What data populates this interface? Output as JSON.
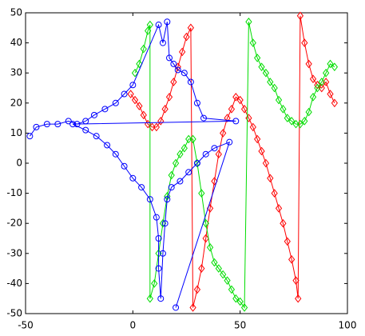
{
  "chart_data": {
    "type": "line",
    "xlim": [
      -50,
      100
    ],
    "ylim": [
      -50,
      50
    ],
    "xticks": [
      -50,
      0,
      50,
      100
    ],
    "yticks": [
      -50,
      -40,
      -30,
      -20,
      -10,
      0,
      10,
      20,
      30,
      40,
      50
    ],
    "series": [
      {
        "color": "#ff0000",
        "marker": "diamond",
        "x": [
          -1,
          1,
          3,
          5,
          7,
          9,
          11,
          13,
          15,
          17,
          19,
          21,
          23,
          25,
          27,
          28,
          30,
          32,
          34,
          36,
          38,
          40,
          42,
          44,
          46,
          48,
          50,
          52,
          54,
          56,
          58,
          60,
          62,
          64,
          66,
          68,
          70,
          72,
          74,
          76,
          77,
          78,
          80,
          82,
          84,
          86,
          88,
          90,
          92,
          94
        ],
        "values": [
          23,
          21,
          19,
          16,
          13,
          12,
          12,
          14,
          18,
          22,
          27,
          32,
          37,
          42,
          45,
          -48,
          -42,
          -35,
          -25,
          -15,
          -6,
          3,
          10,
          15,
          18,
          22,
          21,
          18,
          15,
          12,
          8,
          4,
          0,
          -5,
          -10,
          -15,
          -20,
          -26,
          -32,
          -39,
          -45,
          49,
          40,
          33,
          28,
          26,
          25,
          27,
          23,
          20
        ]
      },
      {
        "color": "#00dd00",
        "marker": "diamond",
        "x": [
          1,
          3,
          5,
          7,
          8,
          8,
          10,
          12,
          14,
          16,
          18,
          20,
          22,
          24,
          26,
          28,
          30,
          32,
          34,
          36,
          38,
          40,
          42,
          44,
          46,
          48,
          50,
          52,
          54,
          56,
          58,
          60,
          62,
          64,
          66,
          68,
          70,
          72,
          74,
          76,
          78,
          80,
          82,
          84,
          86,
          88,
          90,
          92,
          94
        ],
        "values": [
          30,
          33,
          38,
          44,
          46,
          -45,
          -40,
          -30,
          -20,
          -11,
          -4,
          0,
          3,
          5,
          8,
          8,
          0,
          -10,
          -20,
          -28,
          -33,
          -35,
          -37,
          -39,
          -42,
          -45,
          -46,
          -48,
          47,
          40,
          35,
          32,
          30,
          27,
          25,
          21,
          18,
          15,
          14,
          13,
          13,
          14,
          17,
          22,
          25,
          27,
          30,
          33,
          32
        ]
      },
      {
        "color": "#0000ff",
        "marker": "circle",
        "x": [
          -48,
          -45,
          -40,
          -35,
          -30,
          -26,
          -22,
          -18,
          -13,
          -8,
          -4,
          0,
          12,
          14,
          16,
          17,
          19,
          21,
          24,
          27,
          30,
          33,
          48,
          -28,
          -22,
          -17,
          -12,
          -8,
          -4,
          0,
          4,
          8,
          11,
          12,
          12,
          13,
          14,
          15,
          16,
          18,
          22,
          26,
          30,
          34,
          38,
          45,
          20
        ],
        "values": [
          9,
          12,
          13,
          13,
          14,
          13,
          14,
          16,
          18,
          20,
          23,
          26,
          46,
          40,
          47,
          35,
          33,
          31,
          30,
          27,
          20,
          15,
          14,
          13,
          11,
          9,
          6,
          3,
          -1,
          -5,
          -8,
          -12,
          -18,
          -25,
          -35,
          -45,
          -30,
          -20,
          -12,
          -8,
          -6,
          -3,
          0,
          3,
          5,
          7,
          -48
        ]
      }
    ]
  }
}
